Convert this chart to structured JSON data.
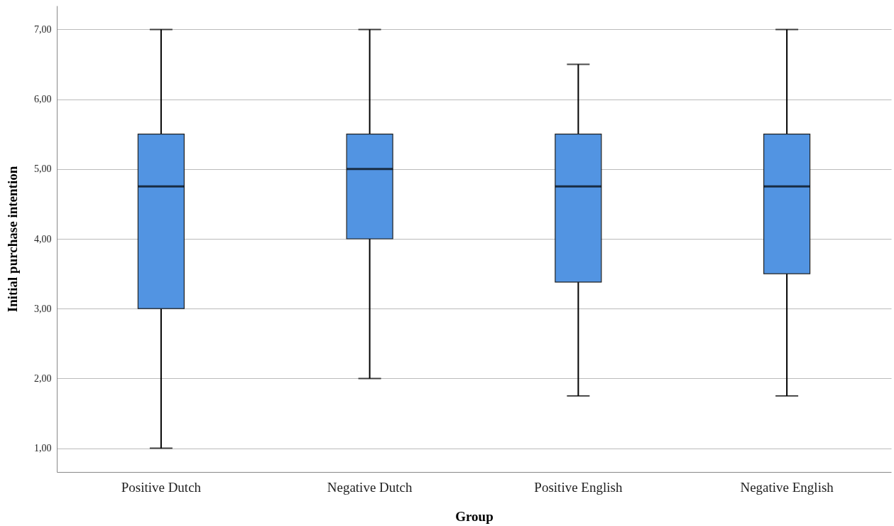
{
  "chart_data": {
    "type": "box",
    "xlabel": "Group",
    "ylabel": "Initial purchase intention",
    "categories": [
      "Positive Dutch",
      "Negative Dutch",
      "Positive English",
      "Negative English"
    ],
    "series": [
      {
        "color": "#5294e2",
        "boxes": [
          {
            "low": 1,
            "q1": 3,
            "median": 4.75,
            "q3": 5.5,
            "high": 7
          },
          {
            "low": 2,
            "q1": 4,
            "median": 5,
            "q3": 5.5,
            "high": 7
          },
          {
            "low": 1.75,
            "q1": 3.38,
            "median": 4.75,
            "q3": 5.5,
            "high": 6.5
          },
          {
            "low": 1.75,
            "q1": 3.5,
            "median": 4.75,
            "q3": 5.5,
            "high": 7
          }
        ]
      }
    ],
    "ylim": [
      0.66,
      7.34
    ],
    "yticks": [
      {
        "value": 1,
        "label": "1,00"
      },
      {
        "value": 2,
        "label": "2,00"
      },
      {
        "value": 3,
        "label": "3,00"
      },
      {
        "value": 4,
        "label": "4,00"
      },
      {
        "value": 5,
        "label": "5,00"
      },
      {
        "value": 6,
        "label": "6,00"
      },
      {
        "value": 7,
        "label": "7,00"
      }
    ],
    "grid": "y"
  }
}
